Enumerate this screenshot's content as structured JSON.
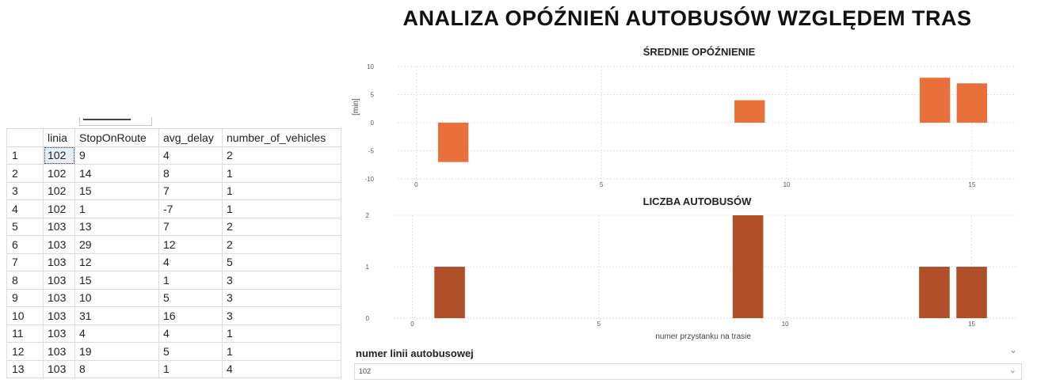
{
  "results_grid": {
    "columns": [
      "",
      "linia",
      "StopOnRoute",
      "avg_delay",
      "number_of_vehicles"
    ],
    "rows": [
      [
        "1",
        "102",
        "9",
        "4",
        "2"
      ],
      [
        "2",
        "102",
        "14",
        "8",
        "1"
      ],
      [
        "3",
        "102",
        "15",
        "7",
        "1"
      ],
      [
        "4",
        "102",
        "1",
        "-7",
        "1"
      ],
      [
        "5",
        "103",
        "13",
        "7",
        "2"
      ],
      [
        "6",
        "103",
        "29",
        "12",
        "2"
      ],
      [
        "7",
        "103",
        "12",
        "4",
        "5"
      ],
      [
        "8",
        "103",
        "15",
        "1",
        "3"
      ],
      [
        "9",
        "103",
        "10",
        "5",
        "3"
      ],
      [
        "10",
        "103",
        "31",
        "16",
        "3"
      ],
      [
        "11",
        "103",
        "4",
        "4",
        "1"
      ],
      [
        "12",
        "103",
        "19",
        "5",
        "1"
      ],
      [
        "13",
        "103",
        "8",
        "1",
        "4"
      ]
    ]
  },
  "dashboard": {
    "title": "ANALIZA OPÓŹNIEŃ AUTOBUSÓW WZGLĘDEM TRAS",
    "slicer": {
      "label": "numer linii autobusowej",
      "selected": "102",
      "chevron": "chevron-down-icon"
    }
  },
  "chart_data": [
    {
      "type": "bar",
      "title": "ŚREDNIE OPÓŹNIENIE",
      "xlabel": "",
      "ylabel": "[min]",
      "x": [
        1,
        9,
        14,
        15
      ],
      "values": [
        -7,
        4,
        8,
        7
      ],
      "xlim": [
        -0.5,
        16.2
      ],
      "ylim": [
        -10,
        10
      ],
      "xticks": [
        0,
        5,
        10,
        15
      ],
      "yticks": [
        -10,
        -5,
        0,
        5,
        10
      ],
      "color": "#E8703A",
      "grid": true
    },
    {
      "type": "bar",
      "title": "LICZBA AUTOBUSÓW",
      "xlabel": "numer przystanku na trasie",
      "ylabel": "",
      "x": [
        1,
        9,
        14,
        15
      ],
      "values": [
        1,
        2,
        1,
        1
      ],
      "xlim": [
        -0.5,
        16.2
      ],
      "ylim": [
        0,
        2
      ],
      "xticks": [
        0,
        5,
        10,
        15
      ],
      "yticks": [
        0,
        1,
        2
      ],
      "color": "#B0502A",
      "grid": true
    }
  ]
}
